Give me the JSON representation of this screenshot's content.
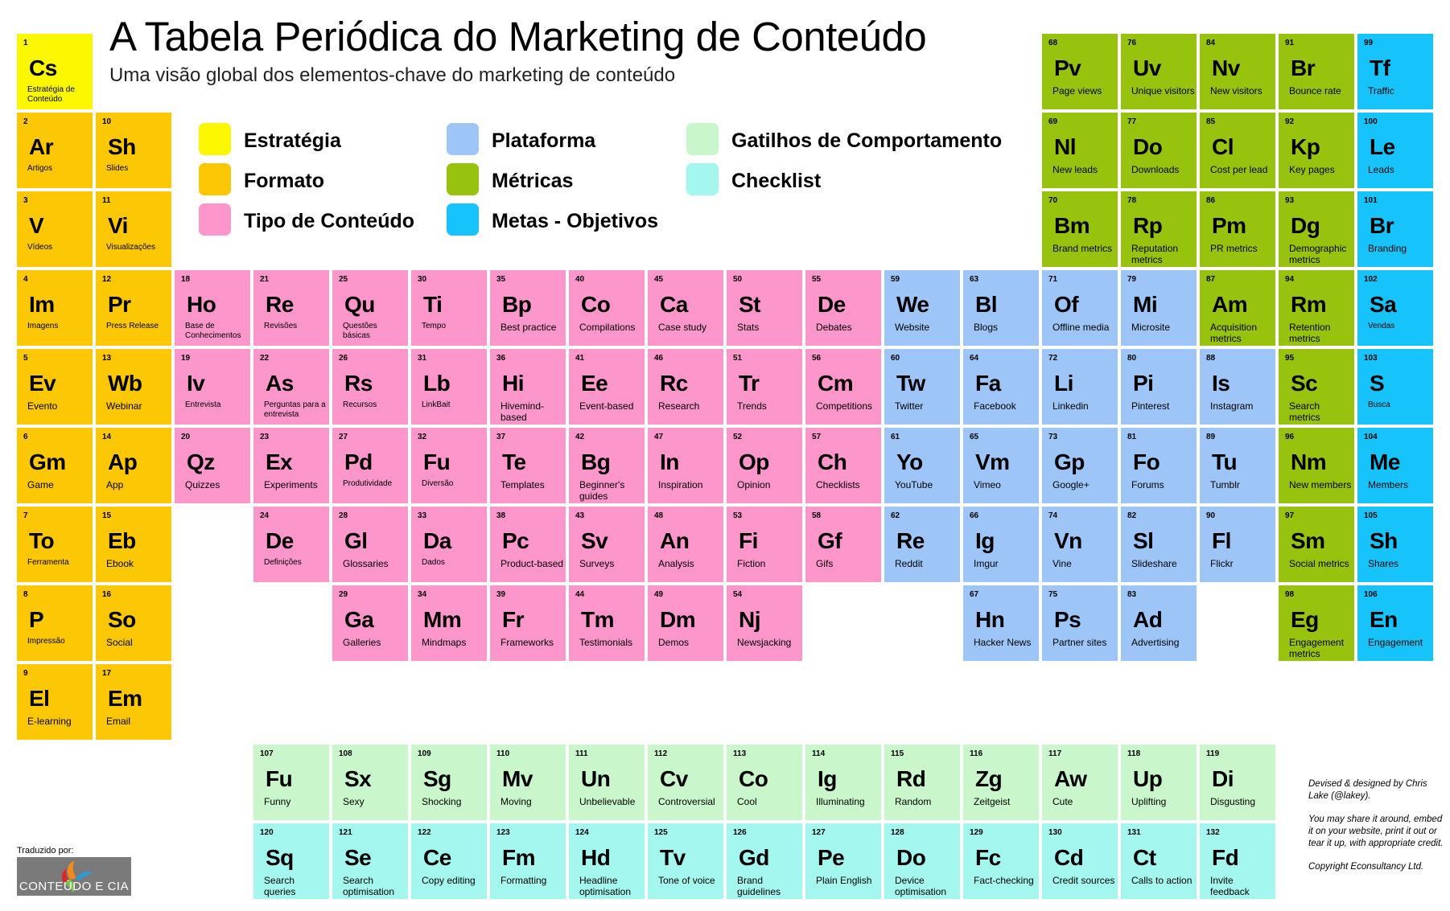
{
  "title": "A Tabela Periódica do Marketing de Conteúdo",
  "subtitle": "Uma visão global dos elementos-chave do marketing de conteúdo",
  "colors": {
    "estrategia": "#fbf700",
    "formato": "#fcc704",
    "tipo": "#fd96ca",
    "plataforma": "#9ec5f7",
    "metricas": "#97c20e",
    "metas": "#16c3fb",
    "gatilhos": "#c9f7cb",
    "checklist": "#a3f7ef"
  },
  "legend": [
    {
      "label": "Estratégia",
      "color": "#fbf700"
    },
    {
      "label": "Formato",
      "color": "#fcc704"
    },
    {
      "label": "Tipo de Conteúdo",
      "color": "#fd96ca"
    },
    {
      "label": "Plataforma",
      "color": "#9ec5f7"
    },
    {
      "label": "Métricas",
      "color": "#97c20e"
    },
    {
      "label": "Metas - Objetivos",
      "color": "#16c3fb"
    },
    {
      "label": "Gatilhos de Comportamento",
      "color": "#c9f7cb"
    },
    {
      "label": "Checklist",
      "color": "#a3f7ef"
    }
  ],
  "elements": [
    {
      "n": "1",
      "s": "Cs",
      "name": "Estratégia de Conteúdo",
      "cat": "estrategia",
      "col": 0,
      "row": 0,
      "small": true
    },
    {
      "n": "2",
      "s": "Ar",
      "name": "Artigos",
      "cat": "formato",
      "col": 0,
      "row": 1,
      "small": true
    },
    {
      "n": "3",
      "s": "V",
      "name": "Vídeos",
      "cat": "formato",
      "col": 0,
      "row": 2,
      "small": true
    },
    {
      "n": "4",
      "s": "Im",
      "name": "Imagens",
      "cat": "formato",
      "col": 0,
      "row": 3,
      "small": true
    },
    {
      "n": "5",
      "s": "Ev",
      "name": "Evento",
      "cat": "formato",
      "col": 0,
      "row": 4
    },
    {
      "n": "6",
      "s": "Gm",
      "name": "Game",
      "cat": "formato",
      "col": 0,
      "row": 5
    },
    {
      "n": "7",
      "s": "To",
      "name": "Ferramenta",
      "cat": "formato",
      "col": 0,
      "row": 6,
      "small": true
    },
    {
      "n": "8",
      "s": "P",
      "name": "Impressão",
      "cat": "formato",
      "col": 0,
      "row": 7,
      "small": true
    },
    {
      "n": "9",
      "s": "El",
      "name": "E-learning",
      "cat": "formato",
      "col": 0,
      "row": 8
    },
    {
      "n": "10",
      "s": "Sh",
      "name": "Slides",
      "cat": "formato",
      "col": 1,
      "row": 1,
      "small": true
    },
    {
      "n": "11",
      "s": "Vi",
      "name": "Visualizações",
      "cat": "formato",
      "col": 1,
      "row": 2,
      "small": true
    },
    {
      "n": "12",
      "s": "Pr",
      "name": "Press Release",
      "cat": "formato",
      "col": 1,
      "row": 3,
      "small": true
    },
    {
      "n": "13",
      "s": "Wb",
      "name": "Webinar",
      "cat": "formato",
      "col": 1,
      "row": 4
    },
    {
      "n": "14",
      "s": "Ap",
      "name": "App",
      "cat": "formato",
      "col": 1,
      "row": 5
    },
    {
      "n": "15",
      "s": "Eb",
      "name": "Ebook",
      "cat": "formato",
      "col": 1,
      "row": 6
    },
    {
      "n": "16",
      "s": "So",
      "name": "Social",
      "cat": "formato",
      "col": 1,
      "row": 7
    },
    {
      "n": "17",
      "s": "Em",
      "name": "Email",
      "cat": "formato",
      "col": 1,
      "row": 8
    },
    {
      "n": "18",
      "s": "Ho",
      "name": "Base de Conhecimentos",
      "cat": "tipo",
      "col": 2,
      "row": 3,
      "small": true
    },
    {
      "n": "19",
      "s": "Iv",
      "name": "Entrevista",
      "cat": "tipo",
      "col": 2,
      "row": 4,
      "small": true
    },
    {
      "n": "20",
      "s": "Qz",
      "name": "Quizzes",
      "cat": "tipo",
      "col": 2,
      "row": 5
    },
    {
      "n": "21",
      "s": "Re",
      "name": "Revisões",
      "cat": "tipo",
      "col": 3,
      "row": 3,
      "small": true
    },
    {
      "n": "22",
      "s": "As",
      "name": "Perguntas para a entrevista",
      "cat": "tipo",
      "col": 3,
      "row": 4,
      "small": true
    },
    {
      "n": "23",
      "s": "Ex",
      "name": "Experiments",
      "cat": "tipo",
      "col": 3,
      "row": 5
    },
    {
      "n": "24",
      "s": "De",
      "name": "Definições",
      "cat": "tipo",
      "col": 3,
      "row": 6,
      "small": true
    },
    {
      "n": "25",
      "s": "Qu",
      "name": "Questões básicas",
      "cat": "tipo",
      "col": 4,
      "row": 3,
      "small": true
    },
    {
      "n": "26",
      "s": "Rs",
      "name": "Recursos",
      "cat": "tipo",
      "col": 4,
      "row": 4,
      "small": true
    },
    {
      "n": "27",
      "s": "Pd",
      "name": "Produtividade",
      "cat": "tipo",
      "col": 4,
      "row": 5,
      "small": true
    },
    {
      "n": "28",
      "s": "Gl",
      "name": "Glossaries",
      "cat": "tipo",
      "col": 4,
      "row": 6
    },
    {
      "n": "29",
      "s": "Ga",
      "name": "Galleries",
      "cat": "tipo",
      "col": 4,
      "row": 7
    },
    {
      "n": "30",
      "s": "Ti",
      "name": "Tempo",
      "cat": "tipo",
      "col": 5,
      "row": 3,
      "small": true
    },
    {
      "n": "31",
      "s": "Lb",
      "name": "LinkBait",
      "cat": "tipo",
      "col": 5,
      "row": 4,
      "small": true
    },
    {
      "n": "32",
      "s": "Fu",
      "name": "Diversão",
      "cat": "tipo",
      "col": 5,
      "row": 5,
      "small": true
    },
    {
      "n": "33",
      "s": "Da",
      "name": "Dados",
      "cat": "tipo",
      "col": 5,
      "row": 6,
      "small": true
    },
    {
      "n": "34",
      "s": "Mm",
      "name": "Mindmaps",
      "cat": "tipo",
      "col": 5,
      "row": 7
    },
    {
      "n": "35",
      "s": "Bp",
      "name": "Best practice",
      "cat": "tipo",
      "col": 6,
      "row": 3
    },
    {
      "n": "36",
      "s": "Hi",
      "name": "Hivemind-based",
      "cat": "tipo",
      "col": 6,
      "row": 4
    },
    {
      "n": "37",
      "s": "Te",
      "name": "Templates",
      "cat": "tipo",
      "col": 6,
      "row": 5
    },
    {
      "n": "38",
      "s": "Pc",
      "name": "Product-based",
      "cat": "tipo",
      "col": 6,
      "row": 6
    },
    {
      "n": "39",
      "s": "Fr",
      "name": "Frameworks",
      "cat": "tipo",
      "col": 6,
      "row": 7
    },
    {
      "n": "40",
      "s": "Co",
      "name": "Compilations",
      "cat": "tipo",
      "col": 7,
      "row": 3
    },
    {
      "n": "41",
      "s": "Ee",
      "name": "Event-based",
      "cat": "tipo",
      "col": 7,
      "row": 4
    },
    {
      "n": "42",
      "s": "Bg",
      "name": "Beginner's guides",
      "cat": "tipo",
      "col": 7,
      "row": 5
    },
    {
      "n": "43",
      "s": "Sv",
      "name": "Surveys",
      "cat": "tipo",
      "col": 7,
      "row": 6
    },
    {
      "n": "44",
      "s": "Tm",
      "name": "Testimonials",
      "cat": "tipo",
      "col": 7,
      "row": 7
    },
    {
      "n": "45",
      "s": "Ca",
      "name": "Case study",
      "cat": "tipo",
      "col": 8,
      "row": 3
    },
    {
      "n": "46",
      "s": "Rc",
      "name": "Research",
      "cat": "tipo",
      "col": 8,
      "row": 4
    },
    {
      "n": "47",
      "s": "In",
      "name": "Inspiration",
      "cat": "tipo",
      "col": 8,
      "row": 5
    },
    {
      "n": "48",
      "s": "An",
      "name": "Analysis",
      "cat": "tipo",
      "col": 8,
      "row": 6
    },
    {
      "n": "49",
      "s": "Dm",
      "name": "Demos",
      "cat": "tipo",
      "col": 8,
      "row": 7
    },
    {
      "n": "50",
      "s": "St",
      "name": "Stats",
      "cat": "tipo",
      "col": 9,
      "row": 3
    },
    {
      "n": "51",
      "s": "Tr",
      "name": "Trends",
      "cat": "tipo",
      "col": 9,
      "row": 4
    },
    {
      "n": "52",
      "s": "Op",
      "name": "Opinion",
      "cat": "tipo",
      "col": 9,
      "row": 5
    },
    {
      "n": "53",
      "s": "Fi",
      "name": "Fiction",
      "cat": "tipo",
      "col": 9,
      "row": 6
    },
    {
      "n": "54",
      "s": "Nj",
      "name": "Newsjacking",
      "cat": "tipo",
      "col": 9,
      "row": 7
    },
    {
      "n": "55",
      "s": "De",
      "name": "Debates",
      "cat": "tipo",
      "col": 10,
      "row": 3
    },
    {
      "n": "56",
      "s": "Cm",
      "name": "Competitions",
      "cat": "tipo",
      "col": 10,
      "row": 4
    },
    {
      "n": "57",
      "s": "Ch",
      "name": "Checklists",
      "cat": "tipo",
      "col": 10,
      "row": 5
    },
    {
      "n": "58",
      "s": "Gf",
      "name": "Gifs",
      "cat": "tipo",
      "col": 10,
      "row": 6
    },
    {
      "n": "59",
      "s": "We",
      "name": "Website",
      "cat": "plataforma",
      "col": 11,
      "row": 3
    },
    {
      "n": "60",
      "s": "Tw",
      "name": "Twitter",
      "cat": "plataforma",
      "col": 11,
      "row": 4
    },
    {
      "n": "61",
      "s": "Yo",
      "name": "YouTube",
      "cat": "plataforma",
      "col": 11,
      "row": 5
    },
    {
      "n": "62",
      "s": "Re",
      "name": "Reddit",
      "cat": "plataforma",
      "col": 11,
      "row": 6
    },
    {
      "n": "63",
      "s": "Bl",
      "name": "Blogs",
      "cat": "plataforma",
      "col": 12,
      "row": 3
    },
    {
      "n": "64",
      "s": "Fa",
      "name": "Facebook",
      "cat": "plataforma",
      "col": 12,
      "row": 4
    },
    {
      "n": "65",
      "s": "Vm",
      "name": "Vimeo",
      "cat": "plataforma",
      "col": 12,
      "row": 5
    },
    {
      "n": "66",
      "s": "Ig",
      "name": "Imgur",
      "cat": "plataforma",
      "col": 12,
      "row": 6
    },
    {
      "n": "67",
      "s": "Hn",
      "name": "Hacker News",
      "cat": "plataforma",
      "col": 12,
      "row": 7
    },
    {
      "n": "71",
      "s": "Of",
      "name": "Offline media",
      "cat": "plataforma",
      "col": 13,
      "row": 3
    },
    {
      "n": "72",
      "s": "Li",
      "name": "Linkedin",
      "cat": "plataforma",
      "col": 13,
      "row": 4
    },
    {
      "n": "73",
      "s": "Gp",
      "name": "Google+",
      "cat": "plataforma",
      "col": 13,
      "row": 5
    },
    {
      "n": "74",
      "s": "Vn",
      "name": "Vine",
      "cat": "plataforma",
      "col": 13,
      "row": 6
    },
    {
      "n": "75",
      "s": "Ps",
      "name": "Partner sites",
      "cat": "plataforma",
      "col": 13,
      "row": 7
    },
    {
      "n": "79",
      "s": "Mi",
      "name": "Microsite",
      "cat": "plataforma",
      "col": 14,
      "row": 3
    },
    {
      "n": "80",
      "s": "Pi",
      "name": "Pinterest",
      "cat": "plataforma",
      "col": 14,
      "row": 4
    },
    {
      "n": "81",
      "s": "Fo",
      "name": "Forums",
      "cat": "plataforma",
      "col": 14,
      "row": 5
    },
    {
      "n": "82",
      "s": "Sl",
      "name": "Slideshare",
      "cat": "plataforma",
      "col": 14,
      "row": 6
    },
    {
      "n": "83",
      "s": "Ad",
      "name": "Advertising",
      "cat": "plataforma",
      "col": 14,
      "row": 7
    },
    {
      "n": "88",
      "s": "Is",
      "name": "Instagram",
      "cat": "plataforma",
      "col": 15,
      "row": 4
    },
    {
      "n": "89",
      "s": "Tu",
      "name": "Tumblr",
      "cat": "plataforma",
      "col": 15,
      "row": 5
    },
    {
      "n": "90",
      "s": "Fl",
      "name": "Flickr",
      "cat": "plataforma",
      "col": 15,
      "row": 6
    },
    {
      "n": "68",
      "s": "Pv",
      "name": "Page views",
      "cat": "metricas",
      "col": 13,
      "row": 0
    },
    {
      "n": "69",
      "s": "Nl",
      "name": "New leads",
      "cat": "metricas",
      "col": 13,
      "row": 1
    },
    {
      "n": "70",
      "s": "Bm",
      "name": "Brand metrics",
      "cat": "metricas",
      "col": 13,
      "row": 2
    },
    {
      "n": "76",
      "s": "Uv",
      "name": "Unique visitors",
      "cat": "metricas",
      "col": 14,
      "row": 0
    },
    {
      "n": "77",
      "s": "Do",
      "name": "Downloads",
      "cat": "metricas",
      "col": 14,
      "row": 1
    },
    {
      "n": "78",
      "s": "Rp",
      "name": "Reputation metrics",
      "cat": "metricas",
      "col": 14,
      "row": 2
    },
    {
      "n": "84",
      "s": "Nv",
      "name": "New visitors",
      "cat": "metricas",
      "col": 15,
      "row": 0
    },
    {
      "n": "85",
      "s": "Cl",
      "name": "Cost per lead",
      "cat": "metricas",
      "col": 15,
      "row": 1
    },
    {
      "n": "86",
      "s": "Pm",
      "name": "PR metrics",
      "cat": "metricas",
      "col": 15,
      "row": 2
    },
    {
      "n": "87",
      "s": "Am",
      "name": "Acquisition metrics",
      "cat": "metricas",
      "col": 15,
      "row": 3
    },
    {
      "n": "91",
      "s": "Br",
      "name": "Bounce rate",
      "cat": "metricas",
      "col": 16,
      "row": 0
    },
    {
      "n": "92",
      "s": "Kp",
      "name": "Key pages",
      "cat": "metricas",
      "col": 16,
      "row": 1
    },
    {
      "n": "93",
      "s": "Dg",
      "name": "Demographic metrics",
      "cat": "metricas",
      "col": 16,
      "row": 2
    },
    {
      "n": "94",
      "s": "Rm",
      "name": "Retention metrics",
      "cat": "metricas",
      "col": 16,
      "row": 3
    },
    {
      "n": "95",
      "s": "Sc",
      "name": "Search metrics",
      "cat": "metricas",
      "col": 16,
      "row": 4
    },
    {
      "n": "96",
      "s": "Nm",
      "name": "New members",
      "cat": "metricas",
      "col": 16,
      "row": 5
    },
    {
      "n": "97",
      "s": "Sm",
      "name": "Social metrics",
      "cat": "metricas",
      "col": 16,
      "row": 6
    },
    {
      "n": "98",
      "s": "Eg",
      "name": "Engagement metrics",
      "cat": "metricas",
      "col": 16,
      "row": 7
    },
    {
      "n": "99",
      "s": "Tf",
      "name": "Traffic",
      "cat": "metas",
      "col": 17,
      "row": 0
    },
    {
      "n": "100",
      "s": "Le",
      "name": "Leads",
      "cat": "metas",
      "col": 17,
      "row": 1
    },
    {
      "n": "101",
      "s": "Br",
      "name": "Branding",
      "cat": "metas",
      "col": 17,
      "row": 2
    },
    {
      "n": "102",
      "s": "Sa",
      "name": "Vendas",
      "cat": "metas",
      "col": 17,
      "row": 3,
      "small": true
    },
    {
      "n": "103",
      "s": "S",
      "name": "Busca",
      "cat": "metas",
      "col": 17,
      "row": 4,
      "small": true
    },
    {
      "n": "104",
      "s": "Me",
      "name": "Members",
      "cat": "metas",
      "col": 17,
      "row": 5
    },
    {
      "n": "105",
      "s": "Sh",
      "name": "Shares",
      "cat": "metas",
      "col": 17,
      "row": 6
    },
    {
      "n": "106",
      "s": "En",
      "name": "Engagement",
      "cat": "metas",
      "col": 17,
      "row": 7
    },
    {
      "n": "107",
      "s": "Fu",
      "name": "Funny",
      "cat": "gatilhos",
      "col": 3,
      "row": 9
    },
    {
      "n": "108",
      "s": "Sx",
      "name": "Sexy",
      "cat": "gatilhos",
      "col": 4,
      "row": 9
    },
    {
      "n": "109",
      "s": "Sg",
      "name": "Shocking",
      "cat": "gatilhos",
      "col": 5,
      "row": 9
    },
    {
      "n": "110",
      "s": "Mv",
      "name": "Moving",
      "cat": "gatilhos",
      "col": 6,
      "row": 9
    },
    {
      "n": "111",
      "s": "Un",
      "name": "Unbelievable",
      "cat": "gatilhos",
      "col": 7,
      "row": 9
    },
    {
      "n": "112",
      "s": "Cv",
      "name": "Controversial",
      "cat": "gatilhos",
      "col": 8,
      "row": 9
    },
    {
      "n": "113",
      "s": "Co",
      "name": "Cool",
      "cat": "gatilhos",
      "col": 9,
      "row": 9
    },
    {
      "n": "114",
      "s": "Ig",
      "name": "Illuminating",
      "cat": "gatilhos",
      "col": 10,
      "row": 9
    },
    {
      "n": "115",
      "s": "Rd",
      "name": "Random",
      "cat": "gatilhos",
      "col": 11,
      "row": 9
    },
    {
      "n": "116",
      "s": "Zg",
      "name": "Zeitgeist",
      "cat": "gatilhos",
      "col": 12,
      "row": 9
    },
    {
      "n": "117",
      "s": "Aw",
      "name": "Cute",
      "cat": "gatilhos",
      "col": 13,
      "row": 9
    },
    {
      "n": "118",
      "s": "Up",
      "name": "Uplifting",
      "cat": "gatilhos",
      "col": 14,
      "row": 9
    },
    {
      "n": "119",
      "s": "Di",
      "name": "Disgusting",
      "cat": "gatilhos",
      "col": 15,
      "row": 9
    },
    {
      "n": "120",
      "s": "Sq",
      "name": "Search queries",
      "cat": "checklist",
      "col": 3,
      "row": 10
    },
    {
      "n": "121",
      "s": "Se",
      "name": "Search optimisation",
      "cat": "checklist",
      "col": 4,
      "row": 10
    },
    {
      "n": "122",
      "s": "Ce",
      "name": "Copy editing",
      "cat": "checklist",
      "col": 5,
      "row": 10
    },
    {
      "n": "123",
      "s": "Fm",
      "name": "Formatting",
      "cat": "checklist",
      "col": 6,
      "row": 10
    },
    {
      "n": "124",
      "s": "Hd",
      "name": "Headline optimisation",
      "cat": "checklist",
      "col": 7,
      "row": 10
    },
    {
      "n": "125",
      "s": "Tv",
      "name": "Tone of voice",
      "cat": "checklist",
      "col": 8,
      "row": 10
    },
    {
      "n": "126",
      "s": "Gd",
      "name": "Brand guidelines",
      "cat": "checklist",
      "col": 9,
      "row": 10
    },
    {
      "n": "127",
      "s": "Pe",
      "name": "Plain English",
      "cat": "checklist",
      "col": 10,
      "row": 10
    },
    {
      "n": "128",
      "s": "Do",
      "name": "Device optimisation",
      "cat": "checklist",
      "col": 11,
      "row": 10
    },
    {
      "n": "129",
      "s": "Fc",
      "name": "Fact-checking",
      "cat": "checklist",
      "col": 12,
      "row": 10
    },
    {
      "n": "130",
      "s": "Cd",
      "name": "Credit sources",
      "cat": "checklist",
      "col": 13,
      "row": 10
    },
    {
      "n": "131",
      "s": "Ct",
      "name": "Calls to action",
      "cat": "checklist",
      "col": 14,
      "row": 10
    },
    {
      "n": "132",
      "s": "Fd",
      "name": "Invite feedback",
      "cat": "checklist",
      "col": 15,
      "row": 10
    }
  ],
  "credits": {
    "line1": "Devised & designed by Chris Lake (@lakey).",
    "line2": "You may share it around, embed it on your website, print it out or tear it up, with appropriate credit.",
    "line3": "Copyright Econsultancy Ltd."
  },
  "translated_by": "Traduzido por:",
  "logo_text": "CONTEÚDO E CIA"
}
